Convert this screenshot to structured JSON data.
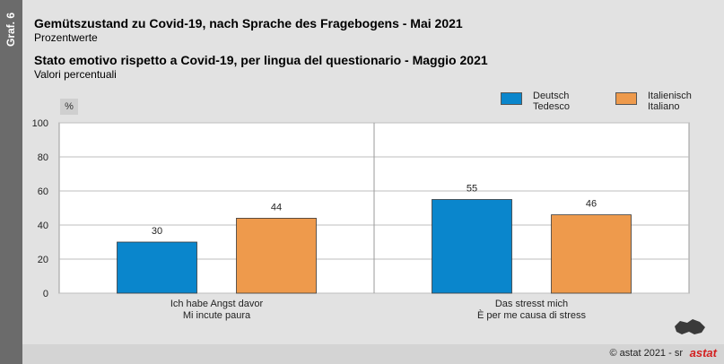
{
  "graf_label": "Graf. 6",
  "title_de": "Gemütszustand zu Covid-19, nach Sprache des Fragebogens - Mai 2021",
  "subtitle_de": "Prozentwerte",
  "title_it": "Stato emotivo rispetto a Covid-19, per lingua del questionario - Maggio 2021",
  "subtitle_it": "Valori percentuali",
  "unit_label": "%",
  "copyright": "© astat 2021 - sr",
  "logo": "astat",
  "colors": {
    "deutsch": "#0a86cc",
    "italienisch": "#ee9a4c"
  },
  "chart_data": {
    "type": "bar",
    "categories": [
      [
        "Ich habe Angst davor",
        "Mi incute paura"
      ],
      [
        "Das stresst mich",
        "È per me causa di stress"
      ]
    ],
    "series": [
      {
        "name": [
          "Deutsch",
          "Tedesco"
        ],
        "values": [
          30,
          55
        ]
      },
      {
        "name": [
          "Italienisch",
          "Italiano"
        ],
        "values": [
          44,
          46
        ]
      }
    ],
    "ylim": [
      0,
      100
    ],
    "yticks": [
      0,
      20,
      40,
      60,
      80,
      100
    ],
    "grid": true,
    "legend": "top-right"
  }
}
